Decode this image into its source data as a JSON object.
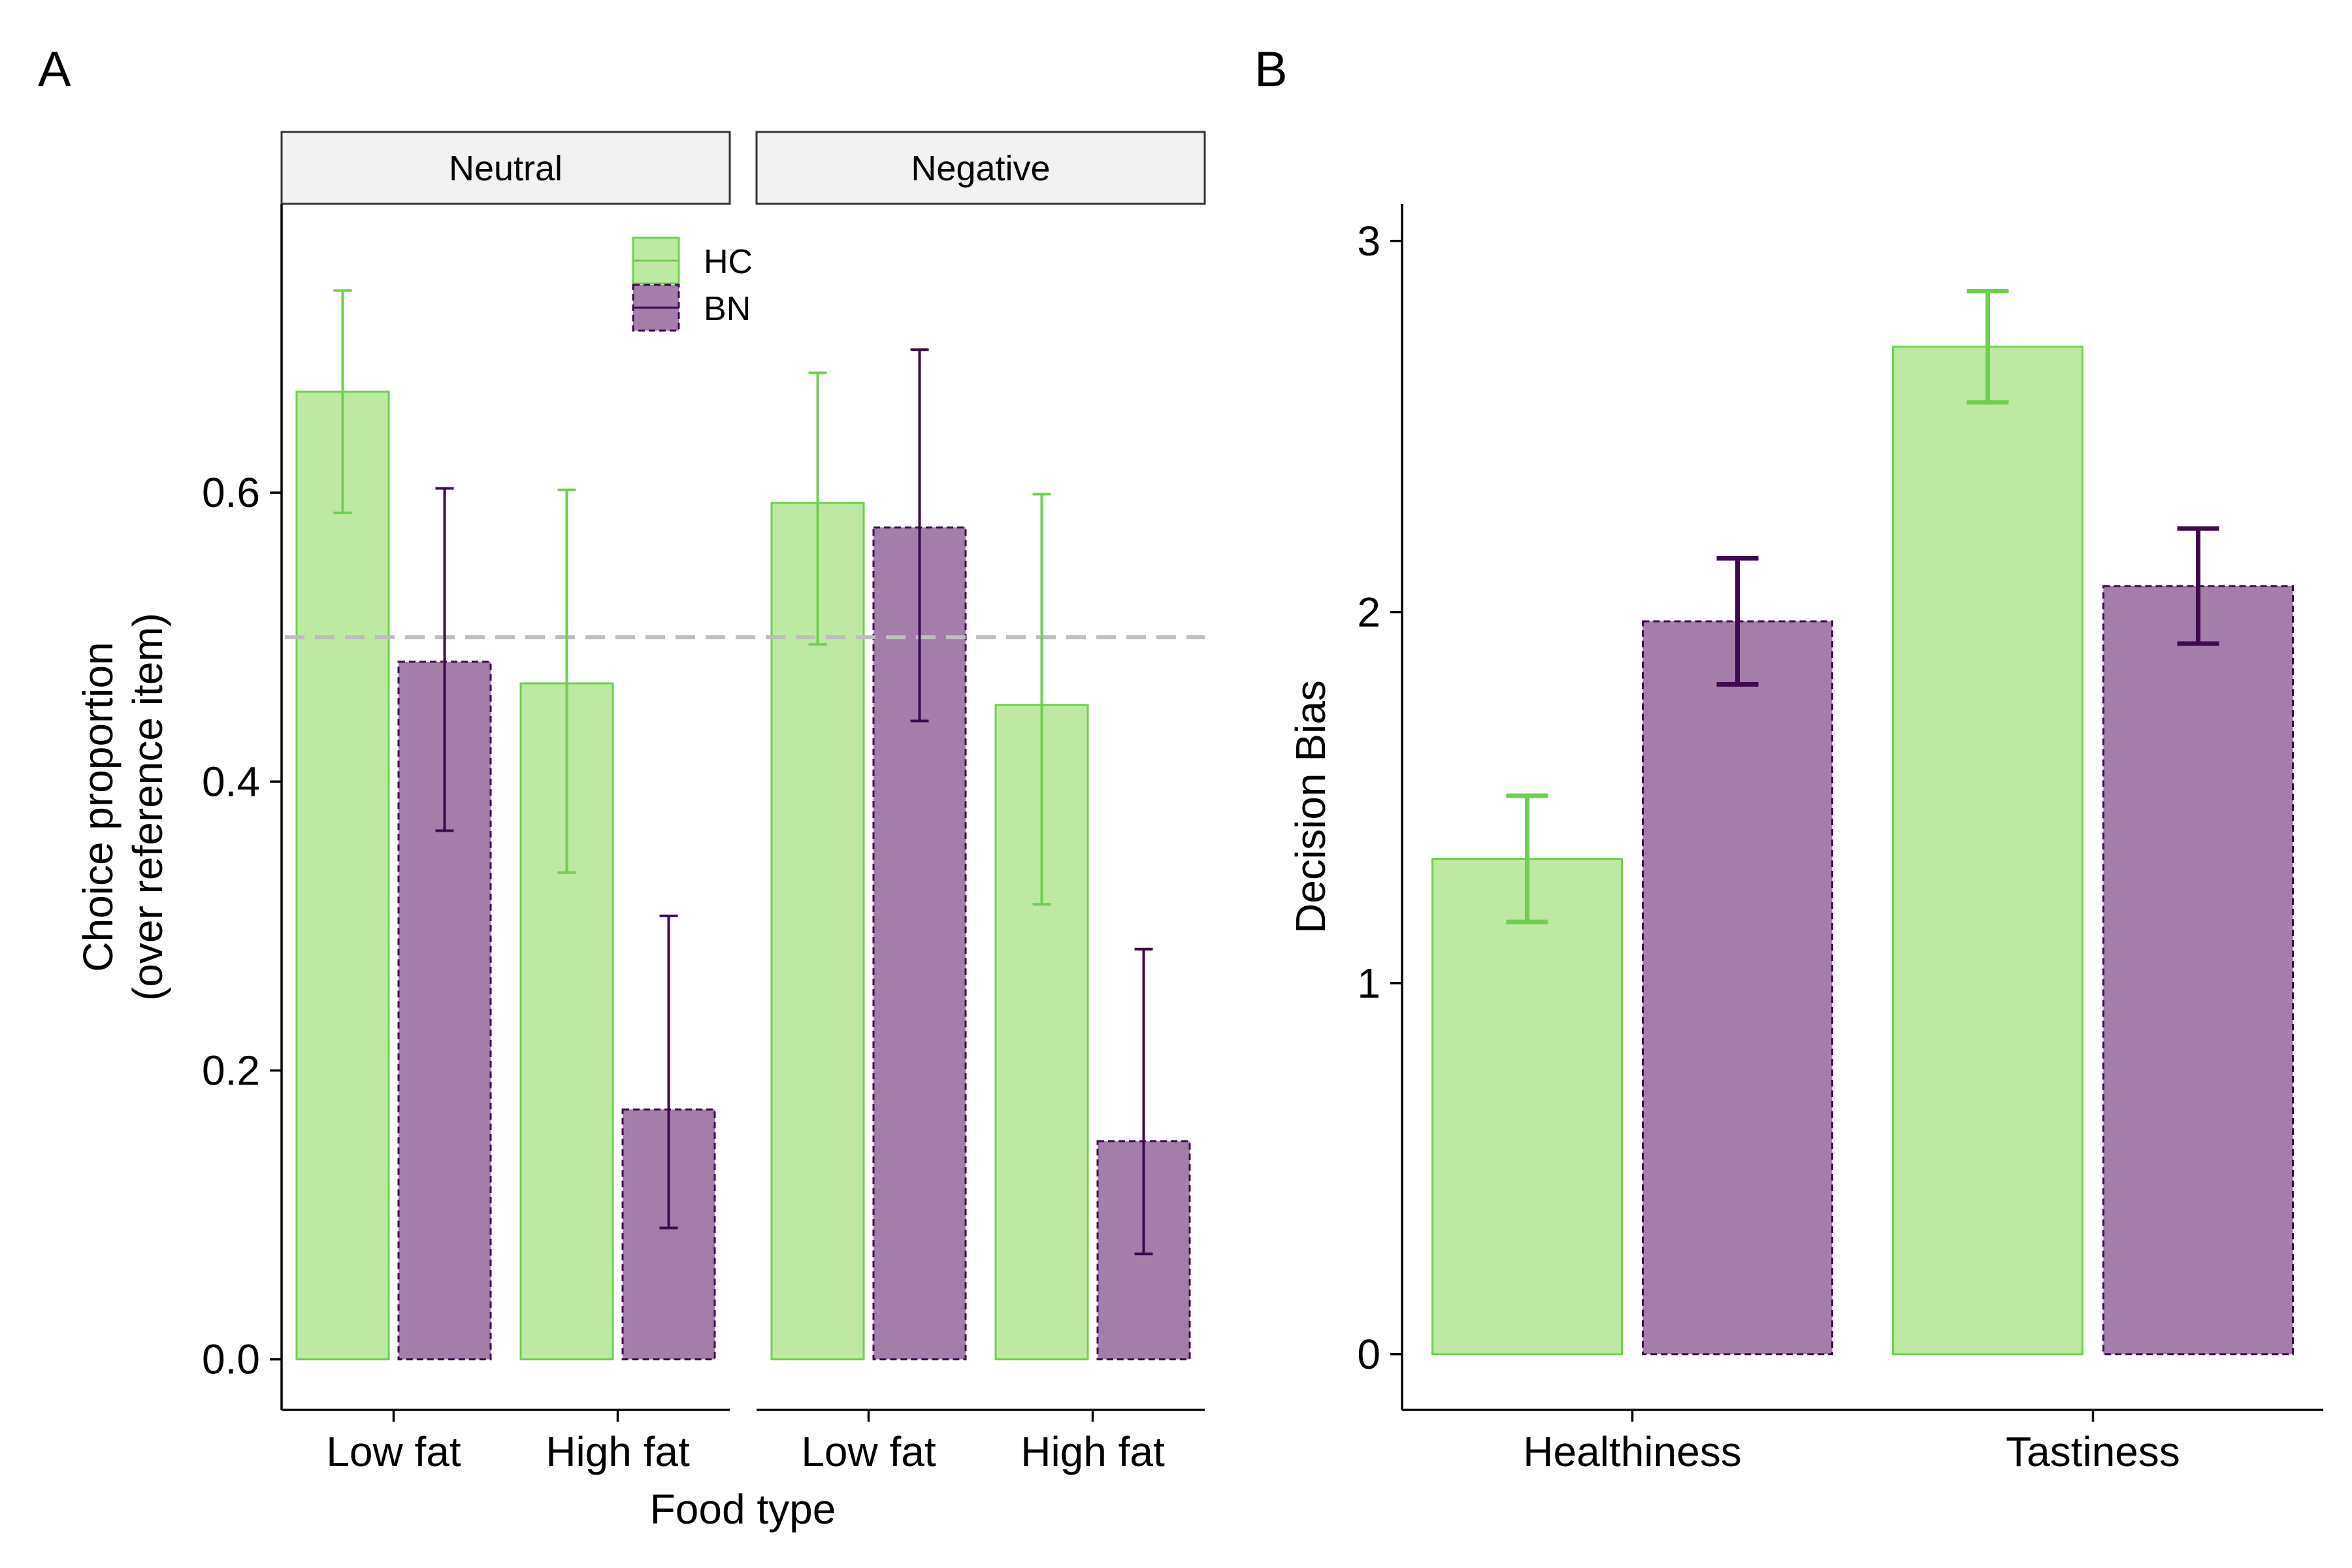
{
  "panel_labels": [
    "A",
    "B"
  ],
  "colors": {
    "HC_fill": "#bde9a3",
    "HC_stroke": "#6fcf50",
    "BN_fill": "#a27ea9",
    "BN_stroke": "#3e0a4f",
    "reference_line": "#bebebe"
  },
  "legend": [
    {
      "key": "HC",
      "label": "HC",
      "linetype": "solid"
    },
    {
      "key": "BN",
      "label": "BN",
      "linetype": "dashed"
    }
  ],
  "chart_data": [
    {
      "panel": "A",
      "type": "bar",
      "facets": [
        "Neutral",
        "Negative"
      ],
      "categories": [
        "Low fat",
        "High fat"
      ],
      "xlabel": "Food type",
      "ylabel": "Choice proportion",
      "ylabel_line2": "(over reference item)",
      "ylim": [
        -0.035,
        0.8
      ],
      "yticks": [
        0.0,
        0.2,
        0.4,
        0.6
      ],
      "ytick_labels": [
        "0.0",
        "0.2",
        "0.4",
        "0.6"
      ],
      "reference_line_y": 0.5,
      "legend_position": "top-inside",
      "series": [
        {
          "key": "HC",
          "values": {
            "Neutral": [
              0.67,
              0.468
            ],
            "Negative": [
              0.593,
              0.453
            ]
          },
          "error_low": {
            "Neutral": [
              0.586,
              0.337
            ],
            "Negative": [
              0.495,
              0.315
            ]
          },
          "error_high": {
            "Neutral": [
              0.74,
              0.602
            ],
            "Negative": [
              0.683,
              0.599
            ]
          }
        },
        {
          "key": "BN",
          "values": {
            "Neutral": [
              0.483,
              0.173
            ],
            "Negative": [
              0.576,
              0.151
            ]
          },
          "error_low": {
            "Neutral": [
              0.366,
              0.091
            ],
            "Negative": [
              0.442,
              0.073
            ]
          },
          "error_high": {
            "Neutral": [
              0.603,
              0.307
            ],
            "Negative": [
              0.699,
              0.284
            ]
          }
        }
      ]
    },
    {
      "panel": "B",
      "type": "bar",
      "categories": [
        "Healthiness",
        "Tastiness"
      ],
      "xlabel": "",
      "ylabel": "Decision Bias",
      "ylim": [
        -0.15,
        3.1
      ],
      "yticks": [
        0,
        1,
        2,
        3
      ],
      "ytick_labels": [
        "0",
        "1",
        "2",
        "3"
      ],
      "series": [
        {
          "key": "HC",
          "values": [
            1.335,
            2.715
          ],
          "error_low": [
            1.165,
            2.565
          ],
          "error_high": [
            1.505,
            2.865
          ]
        },
        {
          "key": "BN",
          "values": [
            1.975,
            2.07
          ],
          "error_low": [
            1.805,
            1.915
          ],
          "error_high": [
            2.145,
            2.225
          ]
        }
      ]
    }
  ]
}
